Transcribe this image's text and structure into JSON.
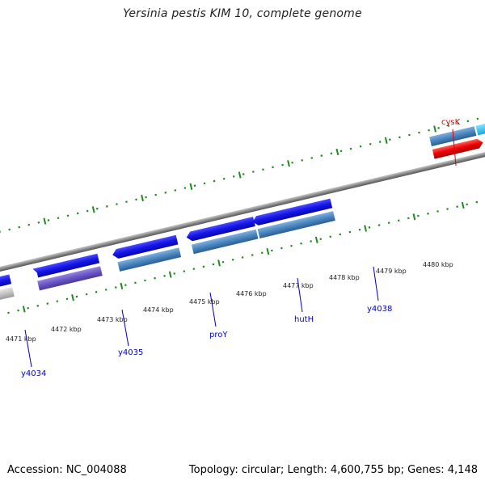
{
  "title": "Yersinia pestis KIM 10, complete genome",
  "footer": {
    "accession": "Accession: NC_004088",
    "stats": "Topology: circular; Length: 4,600,755 bp; Genes: 4,148"
  },
  "colors": {
    "backbone": "#8a8a8a",
    "tick_marks": "#1f8a1f",
    "gene_strand_plus": "#1414e6",
    "gene_strand_minus": "#4a86c0",
    "cysK_label": "#e00000",
    "gene_label": "#0000c0"
  },
  "coordinate_labels": [
    "4471 kbp",
    "4472 kbp",
    "4473 kbp",
    "4474 kbp",
    "4475 kbp",
    "4476 kbp",
    "4477 kbp",
    "4478 kbp",
    "4479 kbp",
    "4480 kbp"
  ],
  "gene_labels": [
    "y4034",
    "y4035",
    "proY",
    "hutH",
    "y4038",
    "cysK"
  ]
}
